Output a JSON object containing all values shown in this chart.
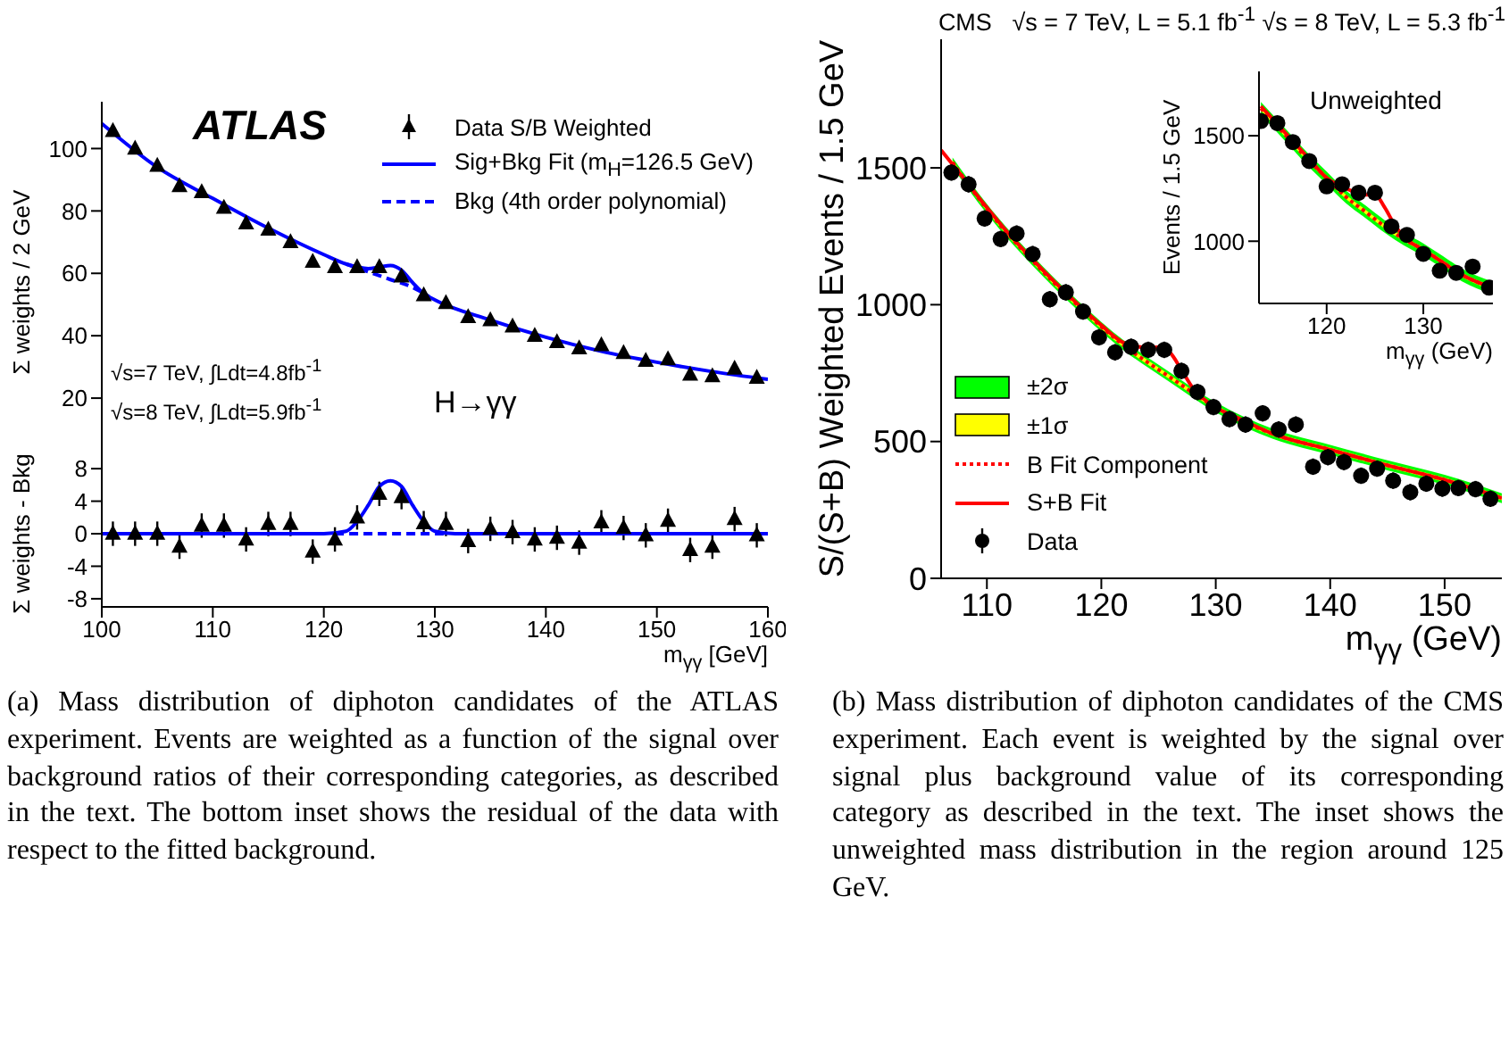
{
  "chart_data": [
    {
      "type": "scatter",
      "ylabel": "Σ weights / 2 GeV",
      "xlim": [
        100,
        160
      ],
      "ylim": [
        0,
        115
      ],
      "xticks": [
        100,
        110,
        120,
        130,
        140,
        150,
        160
      ],
      "yticks": [
        20,
        40,
        60,
        80,
        100
      ],
      "tick_labels": "y",
      "legend": "top right",
      "annotations": [
        "ATLAS",
        "√s=7 TeV, ∫Ldt=4.8fb$^{-1}$",
        "√s=8 TeV, ∫Ldt=5.9fb$^{-1}$",
        "H→γγ",
        "(a) Mass distribution of diphoton candidates of the ATLAS experiment. Events are weighted as a function of the signal over background ratios of their corresponding categories, as described in the text. The bottom inset shows the residual of the data with respect to the fitted background."
      ],
      "series": [
        {
          "name": "Data S/B Weighted",
          "marker": "triangle",
          "color": "#000000",
          "x": [
            101,
            103,
            105,
            107,
            109,
            111,
            113,
            115,
            117,
            119,
            121,
            123,
            125,
            127,
            129,
            131,
            133,
            135,
            137,
            139,
            141,
            143,
            145,
            147,
            149,
            151,
            153,
            155,
            157,
            159
          ],
          "values": [
            105.6,
            100,
            94.5,
            88,
            86,
            81,
            76,
            74,
            70,
            63.7,
            62,
            62,
            62,
            59,
            53,
            50.5,
            46,
            45,
            43,
            40,
            38,
            36,
            37,
            34.5,
            32,
            32.5,
            27.5,
            27,
            29.5,
            26.5
          ]
        },
        {
          "name": "Sig+Bkg Fit (m$_{H}$=126.5 GeV)",
          "type": "line",
          "color": "#0000ff",
          "x": [
            100,
            105,
            110,
            115,
            120,
            122,
            124,
            125,
            126,
            127,
            128,
            129,
            130,
            135,
            140,
            145,
            150,
            155,
            160
          ],
          "values": [
            108,
            94,
            84,
            74.5,
            66,
            63,
            61.5,
            62,
            62.5,
            61,
            57,
            53.5,
            51.5,
            45,
            39.5,
            35,
            31.5,
            28.5,
            26
          ]
        },
        {
          "name": "Bkg (4th order polynomial)",
          "type": "line",
          "line_style": "dashed",
          "color": "#0000ff",
          "x": [
            122,
            124,
            126,
            128,
            129.5
          ],
          "values": [
            63,
            60.5,
            58,
            55.5,
            52.5
          ]
        }
      ]
    },
    {
      "type": "scatter",
      "xlabel": "m$_{γγ}$ [GeV]",
      "ylabel": "Σ weights - Bkg",
      "xlim": [
        100,
        160
      ],
      "ylim": [
        -9,
        9
      ],
      "xticks": [
        100,
        110,
        120,
        130,
        140,
        150,
        160
      ],
      "yticks": [
        -8,
        -4,
        0,
        4,
        8
      ],
      "series": [
        {
          "marker": "triangle",
          "color": "#000000",
          "x": [
            101,
            103,
            105,
            107,
            109,
            111,
            113,
            115,
            117,
            119,
            121,
            123,
            125,
            127,
            129,
            131,
            133,
            135,
            137,
            139,
            141,
            143,
            145,
            147,
            149,
            151,
            153,
            155,
            157,
            159
          ],
          "values": [
            0,
            0,
            0,
            -1.6,
            1,
            1,
            -0.7,
            1.2,
            1.2,
            -2.2,
            -0.7,
            2,
            4.9,
            4.5,
            1.3,
            1.2,
            -0.9,
            0.6,
            0.2,
            -0.7,
            -0.5,
            -1.1,
            1.4,
            0.7,
            -0.2,
            1.6,
            -2,
            -1.6,
            1.8,
            -0.2
          ],
          "errors": [
            1.5,
            1.5,
            1.5,
            1.5,
            1.5,
            1.5,
            1.5,
            1.5,
            1.5,
            1.5,
            1.5,
            1.5,
            1.5,
            1.5,
            1.5,
            1.5,
            1.5,
            1.5,
            1.5,
            1.5,
            1.5,
            1.5,
            1.5,
            1.5,
            1.5,
            1.5,
            1.5,
            1.5,
            1.5,
            1.5
          ]
        },
        {
          "type": "line",
          "color": "#0000ff",
          "x": [
            100,
            120,
            122,
            123,
            124,
            125,
            126,
            127,
            128,
            129,
            130,
            132,
            160
          ],
          "values": [
            0,
            0,
            0.3,
            1.5,
            3.5,
            5.8,
            6.5,
            5.8,
            3.5,
            1.5,
            0.3,
            0,
            0
          ]
        },
        {
          "type": "line",
          "line_style": "dashed",
          "color": "#0000ff",
          "x": [
            121,
            131
          ],
          "values": [
            0,
            0
          ]
        }
      ]
    },
    {
      "type": "scatter",
      "title": "CMS   √s = 7 TeV, L = 5.1 fb$^{-1}$ √s = 8 TeV, L = 5.3 fb$^{-1}$",
      "xlabel": "m$_{γγ}$ (GeV)",
      "ylabel": "S/(S+B) Weighted Events / 1.5 GeV",
      "xlim": [
        106,
        155
      ],
      "ylim": [
        0,
        1970
      ],
      "xticks": [
        110,
        120,
        130,
        140,
        150
      ],
      "yticks": [
        0,
        500,
        1000,
        1500
      ],
      "legend": "bottom left",
      "annotations": [
        "(b) Mass distribution of diphoton candidates of the CMS experiment. Each event is weighted by the signal over signal plus background value of its corresponding category as described in the text. The inset shows the unweighted mass distribution in the region around 125 GeV."
      ],
      "series": [
        {
          "name": "±2σ",
          "type": "line",
          "color": "#00ff00",
          "x": [
            107,
            110,
            114,
            118,
            122,
            126,
            130,
            135,
            140,
            145,
            150,
            155
          ],
          "values": [
            null,
            null,
            null,
            null,
            null,
            null,
            null,
            null,
            null,
            null,
            null,
            null
          ],
          "lower": [
            1502,
            1332,
            1142,
            977,
            832,
            717,
            607,
            510,
            452,
            395,
            342,
            275
          ],
          "upper": [
            1538,
            1368,
            1178,
            1013,
            868,
            753,
            643,
            546,
            488,
            431,
            378,
            311
          ]
        },
        {
          "name": "±1σ",
          "type": "line",
          "color": "#ffff00",
          "x": [
            107,
            110,
            114,
            118,
            122,
            126,
            130,
            135,
            140,
            145,
            150,
            155
          ],
          "values": [
            null,
            null,
            null,
            null,
            null,
            null,
            null,
            null,
            null,
            null,
            null,
            null
          ],
          "lower": [
            1512,
            1342,
            1152,
            987,
            842,
            727,
            617,
            520,
            462,
            405,
            352,
            285
          ],
          "upper": [
            1528,
            1358,
            1168,
            1003,
            858,
            743,
            633,
            536,
            478,
            421,
            368,
            301
          ]
        },
        {
          "name": "B Fit Component",
          "type": "line",
          "line_style": "dotted",
          "color": "#ff0000",
          "x": [
            107,
            110,
            114,
            118,
            122,
            126,
            130,
            135,
            140,
            145,
            150,
            155
          ],
          "values": [
            1520,
            1350,
            1160,
            995,
            850,
            735,
            625,
            528,
            470,
            413,
            360,
            293
          ]
        },
        {
          "name": "S+B Fit",
          "type": "line",
          "color": "#ff0000",
          "x": [
            106,
            108,
            110,
            112,
            114,
            116,
            118,
            120,
            122,
            123,
            124,
            125,
            126,
            127,
            128,
            130,
            132,
            135,
            140,
            145,
            150,
            155
          ],
          "values": [
            1565,
            1460,
            1355,
            1255,
            1165,
            1080,
            1000,
            925,
            860,
            848,
            843,
            845,
            825,
            762,
            695,
            625,
            585,
            528,
            470,
            413,
            360,
            293
          ]
        },
        {
          "name": "Data",
          "marker": "circle",
          "color": "#000000",
          "x": [
            106.9,
            108.4,
            109.8,
            111.2,
            112.6,
            114,
            115.5,
            116.9,
            118.4,
            119.8,
            121.2,
            122.6,
            124.1,
            125.5,
            127,
            128.4,
            129.8,
            131.2,
            132.6,
            134.1,
            135.5,
            137,
            138.5,
            139.8,
            141.2,
            142.7,
            144.1,
            145.5,
            147,
            148.4,
            149.8,
            151.2,
            152.7,
            154
          ],
          "values": [
            1483,
            1440,
            1315,
            1240,
            1260,
            1185,
            1020,
            1045,
            975,
            881,
            826,
            846,
            835,
            835,
            758,
            681,
            626,
            582,
            562,
            603,
            544,
            562,
            408,
            443,
            425,
            375,
            401,
            357,
            315,
            346,
            328,
            330,
            326,
            291
          ],
          "errors": [
            30,
            30,
            30,
            30,
            30,
            30,
            30,
            30,
            30,
            30,
            30,
            30,
            30,
            30,
            30,
            30,
            30,
            30,
            30,
            30,
            30,
            30,
            30,
            30,
            30,
            30,
            30,
            30,
            30,
            30,
            30,
            30,
            30,
            30
          ]
        }
      ]
    },
    {
      "type": "scatter",
      "title": "Unweighted",
      "xlabel": "m$_{γγ}$ (GeV)",
      "ylabel": "Events / 1.5 GeV",
      "xlim": [
        113,
        137.2
      ],
      "ylim": [
        705,
        1805
      ],
      "xticks": [
        120,
        130
      ],
      "yticks": [
        1000,
        1500
      ],
      "series": [
        {
          "type": "line",
          "color": "#00ff00",
          "x": [
            113.2,
            116,
            118,
            120,
            122,
            124,
            126,
            128,
            130,
            132,
            134,
            137.1
          ],
          "values": [
            null,
            null,
            null,
            null,
            null,
            null,
            null,
            null,
            null,
            null,
            null,
            null
          ],
          "lower": [
            1600,
            1460,
            1360,
            1270,
            1180,
            1110,
            1040,
            980,
            930,
            870,
            810,
            750
          ],
          "upper": [
            1660,
            1520,
            1420,
            1330,
            1240,
            1170,
            1100,
            1040,
            990,
            930,
            870,
            810
          ]
        },
        {
          "type": "line",
          "color": "#ffff00",
          "x": [
            113.2,
            116,
            118,
            120,
            122,
            124,
            126,
            128,
            130,
            132,
            134,
            137.1
          ],
          "values": [
            null,
            null,
            null,
            null,
            null,
            null,
            null,
            null,
            null,
            null,
            null,
            null
          ],
          "lower": [
            1620,
            1480,
            1380,
            1290,
            1200,
            1130,
            1060,
            1000,
            950,
            890,
            830,
            770
          ],
          "upper": [
            1640,
            1500,
            1400,
            1310,
            1220,
            1150,
            1080,
            1020,
            970,
            910,
            850,
            790
          ]
        },
        {
          "type": "line",
          "line_style": "dotted",
          "color": "#ff0000",
          "x": [
            113.2,
            116,
            118,
            120,
            122,
            124,
            126,
            128,
            130,
            132,
            134,
            137.1
          ],
          "values": [
            1630,
            1490,
            1390,
            1300,
            1210,
            1140,
            1070,
            1010,
            960,
            900,
            840,
            780
          ]
        },
        {
          "type": "line",
          "color": "#ff0000",
          "x": [
            113.2,
            116,
            118,
            120,
            122,
            124,
            125,
            126,
            127,
            128,
            130,
            132,
            134,
            137.1
          ],
          "values": [
            1640,
            1500,
            1400,
            1300,
            1250,
            1220,
            1220,
            1160,
            1080,
            1020,
            960,
            900,
            840,
            780
          ]
        },
        {
          "marker": "circle",
          "color": "#000000",
          "x": [
            113.2,
            114.9,
            116.5,
            118.2,
            120,
            121.6,
            123.3,
            125,
            126.7,
            128.3,
            130,
            131.7,
            133.4,
            135.1,
            136.8
          ],
          "values": [
            1570,
            1560,
            1470,
            1380,
            1260,
            1270,
            1230,
            1230,
            1070,
            1030,
            940,
            860,
            850,
            880,
            780
          ],
          "errors": [
            30,
            30,
            30,
            30,
            30,
            30,
            30,
            30,
            30,
            30,
            30,
            30,
            30,
            30,
            30
          ]
        }
      ]
    }
  ]
}
